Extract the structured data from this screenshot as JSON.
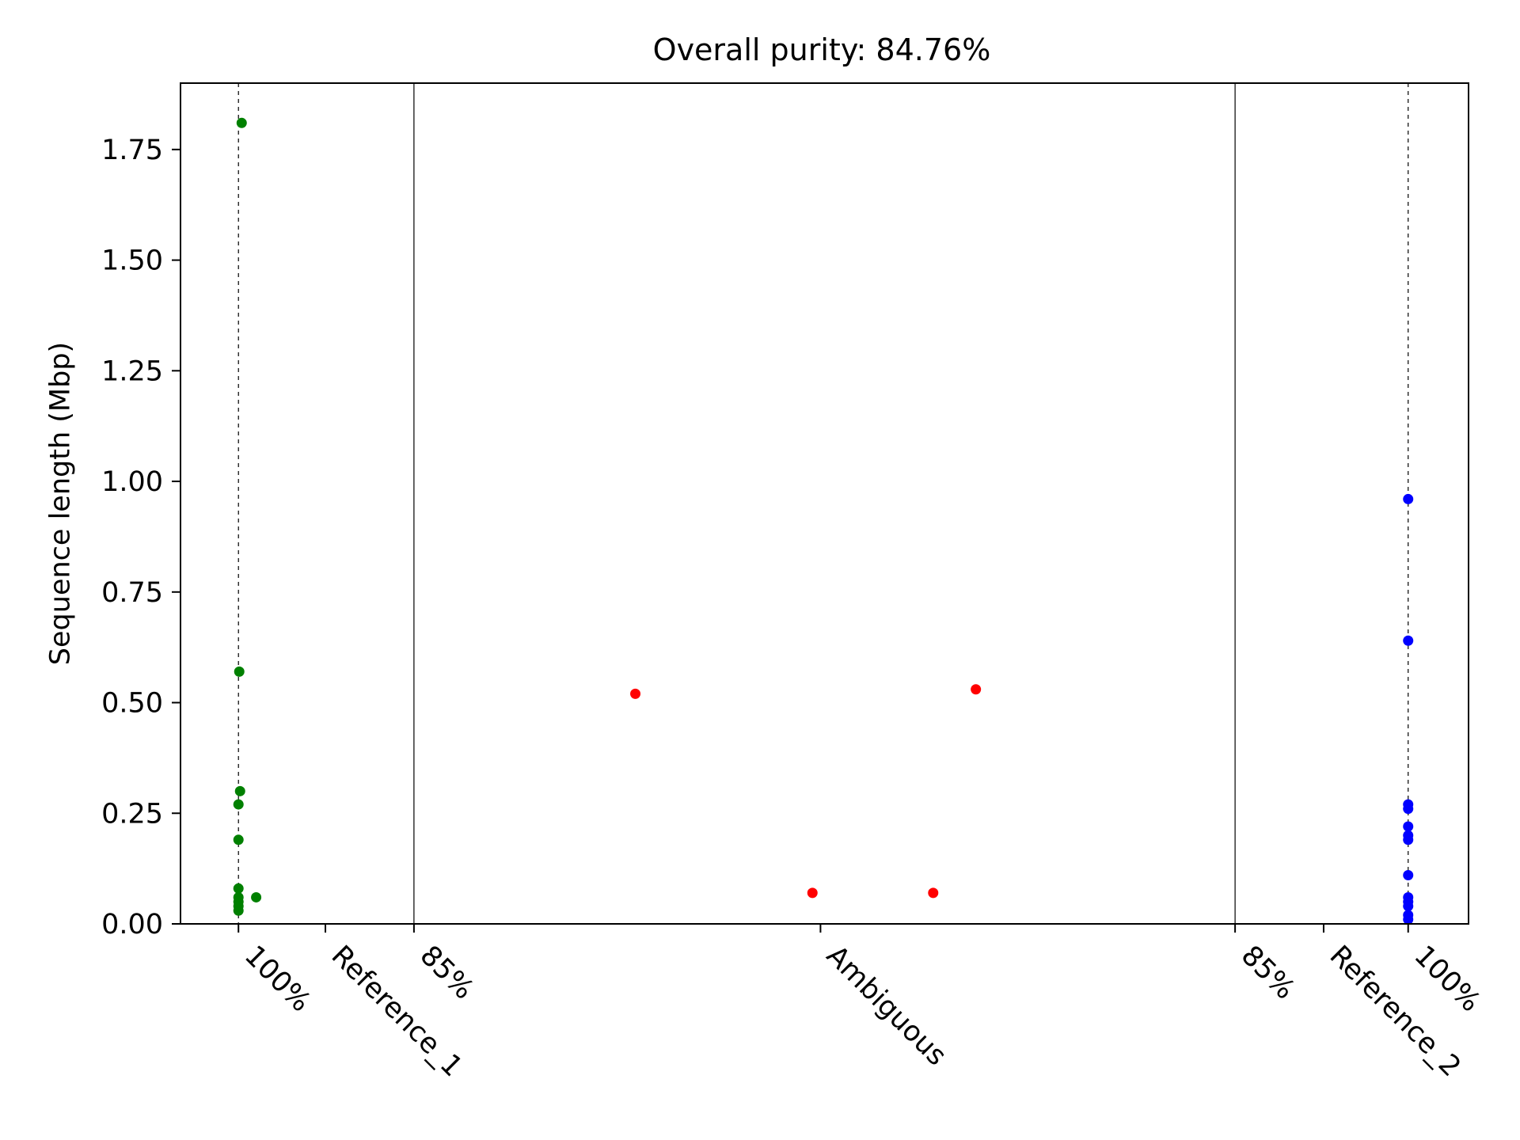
{
  "chart_data": {
    "type": "scatter",
    "title": "Overall purity: 84.76%",
    "xlabel": "",
    "ylabel": "Sequence length (Mbp)",
    "ylim": [
      0,
      1.9
    ],
    "xlim": [
      0,
      16
    ],
    "grid": false,
    "legend": "none",
    "y_ticks": [
      {
        "value": 0.0,
        "label": "0.00"
      },
      {
        "value": 0.25,
        "label": "0.25"
      },
      {
        "value": 0.5,
        "label": "0.50"
      },
      {
        "value": 0.75,
        "label": "0.75"
      },
      {
        "value": 1.0,
        "label": "1.00"
      },
      {
        "value": 1.25,
        "label": "1.25"
      },
      {
        "value": 1.5,
        "label": "1.50"
      },
      {
        "value": 1.75,
        "label": "1.75"
      }
    ],
    "x_ticks": [
      {
        "value": 0.72,
        "label": "100%"
      },
      {
        "value": 1.8,
        "label": "Reference_1"
      },
      {
        "value": 2.9,
        "label": "85%"
      },
      {
        "value": 7.95,
        "label": "Ambiguous"
      },
      {
        "value": 13.1,
        "label": "85%"
      },
      {
        "value": 14.2,
        "label": "Reference_2"
      },
      {
        "value": 15.25,
        "label": "100%"
      }
    ],
    "separators": [
      2.9,
      13.1
    ],
    "reference_lines": [
      0.72,
      15.25
    ],
    "series": [
      {
        "color": "#008000",
        "points": [
          {
            "x": 0.76,
            "y": 1.81
          },
          {
            "x": 0.73,
            "y": 0.57
          },
          {
            "x": 0.74,
            "y": 0.3
          },
          {
            "x": 0.72,
            "y": 0.27
          },
          {
            "x": 0.72,
            "y": 0.19
          },
          {
            "x": 0.72,
            "y": 0.08
          },
          {
            "x": 0.72,
            "y": 0.06
          },
          {
            "x": 0.72,
            "y": 0.05
          },
          {
            "x": 0.72,
            "y": 0.04
          },
          {
            "x": 0.72,
            "y": 0.03
          },
          {
            "x": 0.94,
            "y": 0.06
          }
        ]
      },
      {
        "color": "#ff0000",
        "points": [
          {
            "x": 5.65,
            "y": 0.52
          },
          {
            "x": 7.85,
            "y": 0.07
          },
          {
            "x": 9.35,
            "y": 0.07
          },
          {
            "x": 9.88,
            "y": 0.53
          }
        ]
      },
      {
        "color": "#0000ff",
        "points": [
          {
            "x": 15.25,
            "y": 0.96
          },
          {
            "x": 15.25,
            "y": 0.64
          },
          {
            "x": 15.25,
            "y": 0.27
          },
          {
            "x": 15.25,
            "y": 0.26
          },
          {
            "x": 15.25,
            "y": 0.22
          },
          {
            "x": 15.25,
            "y": 0.2
          },
          {
            "x": 15.25,
            "y": 0.19
          },
          {
            "x": 15.25,
            "y": 0.11
          },
          {
            "x": 15.25,
            "y": 0.06
          },
          {
            "x": 15.25,
            "y": 0.05
          },
          {
            "x": 15.25,
            "y": 0.04
          },
          {
            "x": 15.25,
            "y": 0.02
          },
          {
            "x": 15.25,
            "y": 0.01
          }
        ]
      }
    ]
  }
}
